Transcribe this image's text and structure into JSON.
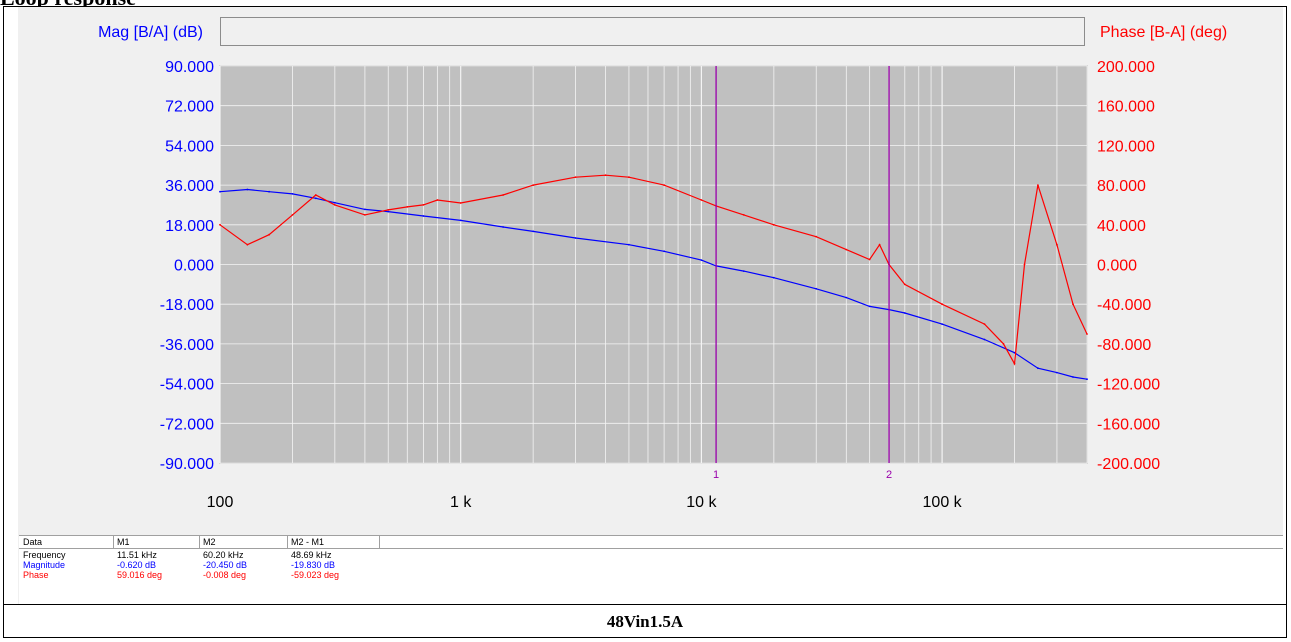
{
  "document": {
    "heading": "Loop response",
    "caption": "48Vin1.5A"
  },
  "chart_data": {
    "type": "line",
    "title": "",
    "left_axis": {
      "label": "Mag [B/A] (dB)",
      "color": "#0000ff",
      "range": [
        -90,
        90
      ],
      "ticks": [
        "90.000",
        "72.000",
        "54.000",
        "36.000",
        "18.000",
        "0.000",
        "-18.000",
        "-36.000",
        "-54.000",
        "-72.000",
        "-90.000"
      ]
    },
    "right_axis": {
      "label": "Phase [B-A] (deg)",
      "color": "#ff0000",
      "range": [
        -200,
        200
      ],
      "ticks": [
        "200.000",
        "160.000",
        "120.000",
        "80.000",
        "40.000",
        "0.000",
        "-40.000",
        "-80.000",
        "-120.000",
        "-160.000",
        "-200.000"
      ]
    },
    "x_axis": {
      "scale": "log",
      "range_hz": [
        100,
        400000
      ],
      "ticks": [
        {
          "value": 100,
          "label": "100"
        },
        {
          "value": 1000,
          "label": "1 k"
        },
        {
          "value": 10000,
          "label": "10 k"
        },
        {
          "value": 100000,
          "label": "100 k"
        }
      ]
    },
    "grid": true,
    "plot_background": "#c0c0c0",
    "series": [
      {
        "axis": "left",
        "color": "#0000ff",
        "x": [
          100,
          130,
          160,
          200,
          250,
          300,
          400,
          500,
          700,
          1000,
          1500,
          2000,
          3000,
          5000,
          7000,
          10000,
          11510,
          15000,
          20000,
          30000,
          40000,
          50000,
          60200,
          70000,
          100000,
          150000,
          200000,
          250000,
          300000,
          350000,
          400000
        ],
        "y": [
          33,
          34,
          33,
          32,
          30,
          28,
          25,
          24,
          22,
          20,
          17,
          15,
          12,
          9,
          6,
          2,
          -0.62,
          -3,
          -6,
          -11,
          -15,
          -19,
          -20.45,
          -22,
          -27,
          -34,
          -40,
          -47,
          -49,
          -51,
          -52
        ]
      },
      {
        "axis": "right",
        "color": "#ff0000",
        "x": [
          100,
          130,
          160,
          200,
          250,
          300,
          400,
          500,
          600,
          700,
          800,
          1000,
          1500,
          2000,
          3000,
          4000,
          5000,
          7000,
          10000,
          11510,
          15000,
          20000,
          30000,
          40000,
          50000,
          55000,
          60200,
          70000,
          100000,
          150000,
          180000,
          200000,
          220000,
          250000,
          300000,
          350000,
          400000
        ],
        "y": [
          40,
          20,
          30,
          50,
          70,
          60,
          50,
          55,
          58,
          60,
          65,
          62,
          70,
          80,
          88,
          90,
          88,
          80,
          65,
          59,
          50,
          40,
          28,
          15,
          5,
          20,
          -0.008,
          -20,
          -40,
          -60,
          -80,
          -100,
          0,
          80,
          20,
          -40,
          -70
        ]
      }
    ],
    "markers": [
      {
        "label": "1",
        "freq_hz": 11510
      },
      {
        "label": "2",
        "freq_hz": 60200
      }
    ]
  },
  "data_table": {
    "headers": [
      "Data",
      "M1",
      "M2",
      "M2 - M1"
    ],
    "rows": [
      {
        "label": "Frequency",
        "color": "#000000",
        "values": [
          "11.51 kHz",
          "60.20 kHz",
          "48.69 kHz"
        ]
      },
      {
        "label": "Magnitude",
        "color": "#0000ff",
        "values": [
          "-0.620 dB",
          "-20.450 dB",
          "-19.830 dB"
        ]
      },
      {
        "label": "Phase",
        "color": "#ff0000",
        "values": [
          "59.016 deg",
          "-0.008 deg",
          "-59.023 deg"
        ]
      }
    ]
  }
}
